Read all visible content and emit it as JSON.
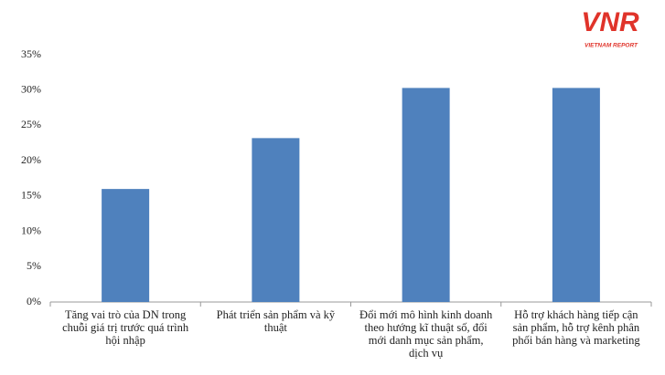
{
  "logo": {
    "mark": "VNR",
    "caption": "VIETNAM REPORT"
  },
  "chart_data": {
    "type": "bar",
    "categories": [
      "Tăng vai trò của DN trong chuỗi giá trị trước quá trình hội nhập",
      "Phát triển sản phẩm và kỹ thuật",
      "Đổi mới mô hình kinh doanh theo hướng kĩ thuật số, đổi mới danh mục sản phẩm, dịch vụ",
      "Hỗ trợ khách hàng tiếp cận sản phẩm, hỗ trợ kênh phân phối bán hàng và marketing"
    ],
    "values": [
      16,
      23.2,
      30.3,
      30.3
    ],
    "color": "#4f81bd",
    "ylim": [
      0,
      35
    ],
    "yticks": [
      {
        "value": 0,
        "label": "0%"
      },
      {
        "value": 5,
        "label": "5%"
      },
      {
        "value": 10,
        "label": "10%"
      },
      {
        "value": 15,
        "label": "15%"
      },
      {
        "value": 20,
        "label": "20%"
      },
      {
        "value": 25,
        "label": "25%"
      },
      {
        "value": 30,
        "label": "30%"
      },
      {
        "value": 35,
        "label": "35%"
      }
    ],
    "grid": false
  }
}
